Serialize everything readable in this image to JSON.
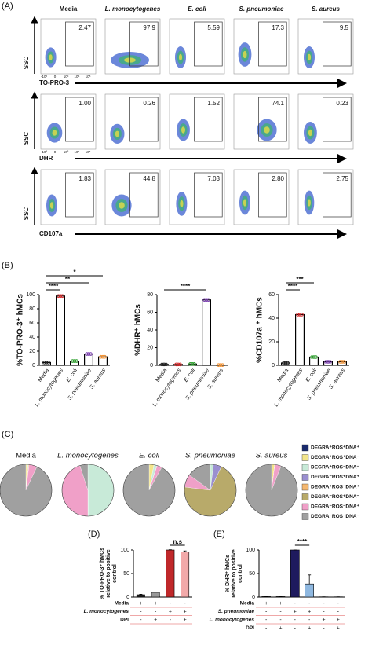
{
  "panel_labels": [
    "(A)",
    "(B)",
    "(C)",
    "(D)",
    "(E)"
  ],
  "panel_a": {
    "columns": [
      "Media",
      "L. monocytogenes",
      "E. coli",
      "S. pneumoniae",
      "S. aureus"
    ],
    "y_label": "SSC",
    "flow_ticks": [
      "-10³",
      "0",
      "10³",
      "10⁴",
      "10⁵"
    ],
    "rows": [
      {
        "x_label": "TO-PRO-3",
        "gates": [
          "2.47",
          "97.9",
          "5.59",
          "17.3",
          "9.5"
        ]
      },
      {
        "x_label": "DHR",
        "gates": [
          "1.00",
          "0.26",
          "1.52",
          "74.1",
          "0.23"
        ]
      },
      {
        "x_label": "CD107a",
        "gates": [
          "1.83",
          "44.8",
          "7.03",
          "2.80",
          "2.75"
        ]
      }
    ]
  },
  "chart_data": [
    {
      "type": "bar",
      "ylabel": "%TO-PRO-3⁺ hMCs",
      "categories": [
        "Media",
        "L. monocytogenes",
        "E. coli",
        "S. pneumoniae",
        "S. aureus"
      ],
      "values": [
        4,
        98,
        6,
        16,
        12
      ],
      "point_colors": [
        "#222222",
        "#d62728",
        "#2ca02c",
        "#7b3fb0",
        "#f28e2b"
      ],
      "ylim": [
        0,
        100
      ],
      "yticks": [
        0,
        20,
        40,
        60,
        80,
        100
      ],
      "annotations": [
        "****",
        "**",
        "*"
      ]
    },
    {
      "type": "bar",
      "ylabel": "%DHR⁺ hMCs",
      "categories": [
        "Media",
        "L. monocytogenes",
        "E. coli",
        "S. pneumoniae",
        "S. aureus"
      ],
      "values": [
        1,
        1,
        1.5,
        74,
        0.3
      ],
      "point_colors": [
        "#222222",
        "#d62728",
        "#2ca02c",
        "#7b3fb0",
        "#f28e2b"
      ],
      "ylim": [
        0,
        80
      ],
      "yticks": [
        0,
        20,
        40,
        60,
        80
      ],
      "annotations": [
        "****"
      ]
    },
    {
      "type": "bar",
      "ylabel": "%CD107a ⁺ hMCs",
      "categories": [
        "Media",
        "L. monocytogenes",
        "E. coli",
        "S. pneumoniae",
        "S. aureus"
      ],
      "values": [
        2,
        43,
        7,
        3,
        3
      ],
      "point_colors": [
        "#222222",
        "#d62728",
        "#2ca02c",
        "#7b3fb0",
        "#f28e2b"
      ],
      "ylim": [
        0,
        60
      ],
      "yticks": [
        0,
        20,
        40,
        60
      ],
      "annotations": [
        "****",
        "***"
      ]
    },
    {
      "type": "pie",
      "categories": [
        "DEGRA⁺ROS⁺DNA⁺",
        "DEGRA⁺ROS⁺DNA⁻",
        "DEGRA⁺ROS⁻DNA⁻",
        "DEGRA⁻ROS⁺DNA⁺",
        "DEGRA⁺ROS⁻DNA⁺",
        "DEGRA⁻ROS⁺DNA⁻",
        "DEGRA⁻ROS⁻DNA⁺",
        "DEGRA⁻ROS⁻DNA⁻"
      ],
      "colors": [
        "#1a2a6c",
        "#f3e58a",
        "#c8ead8",
        "#9a8fd0",
        "#f5b870",
        "#b8aa6a",
        "#f0a0c8",
        "#a0a0a0"
      ],
      "pies": [
        {
          "title": "Media",
          "values": [
            0,
            1,
            0.5,
            0,
            0.5,
            0,
            5,
            93
          ]
        },
        {
          "title": "L. monocytogenes",
          "values": [
            0,
            0,
            50,
            0,
            0,
            0,
            45,
            5
          ]
        },
        {
          "title": "E. coli",
          "values": [
            0,
            3,
            2,
            0,
            0,
            0,
            3,
            92
          ]
        },
        {
          "title": "S. pneumoniae",
          "values": [
            0,
            0,
            2,
            5,
            0,
            70,
            8,
            15
          ]
        },
        {
          "title": "S. aureus",
          "values": [
            0,
            2,
            0,
            0,
            0,
            0,
            4,
            94
          ]
        }
      ]
    },
    {
      "type": "bar",
      "ylabel": [
        "% TO-PRO-3⁺ hMCs",
        "relative to positive",
        "control"
      ],
      "values": [
        5,
        10,
        100,
        96
      ],
      "errors": [
        1,
        1,
        0.5,
        2
      ],
      "colors": [
        "#222222",
        "#999999",
        "#c0282a",
        "#f2a9a9"
      ],
      "ylim": [
        0,
        100
      ],
      "yticks": [
        0,
        50,
        100
      ],
      "annotations": [
        "n.s"
      ],
      "conditions": [
        {
          "name": "Media",
          "signs": [
            "+",
            "+",
            "-",
            "-"
          ]
        },
        {
          "name": "L. monocytogenes",
          "signs": [
            "-",
            "-",
            "+",
            "+"
          ]
        },
        {
          "name": "DPI",
          "signs": [
            "-",
            "+",
            "-",
            "+"
          ]
        }
      ]
    },
    {
      "type": "bar",
      "ylabel": [
        "% DHR⁺ hMCs",
        "relative to positive",
        "control"
      ],
      "values": [
        1,
        1,
        100,
        28,
        0.5,
        0.5
      ],
      "errors": [
        0,
        0,
        0,
        19,
        0,
        0
      ],
      "colors": [
        "#222222",
        "#999999",
        "#1e1a5e",
        "#8fb8e0",
        "#c0282a",
        "#f2a9a9"
      ],
      "ylim": [
        0,
        100
      ],
      "yticks": [
        0,
        50,
        100
      ],
      "annotations": [
        "****"
      ],
      "conditions": [
        {
          "name": "Media",
          "signs": [
            "+",
            "+",
            "-",
            "-",
            "-",
            "-"
          ]
        },
        {
          "name": "S. pneumoniae",
          "signs": [
            "-",
            "-",
            "+",
            "+",
            "-",
            "-"
          ]
        },
        {
          "name": "L. monocytogenes",
          "signs": [
            "-",
            "-",
            "-",
            "-",
            "+",
            "+"
          ]
        },
        {
          "name": "DPI",
          "signs": [
            "-",
            "+",
            "-",
            "+",
            "-",
            "+"
          ]
        }
      ]
    }
  ]
}
